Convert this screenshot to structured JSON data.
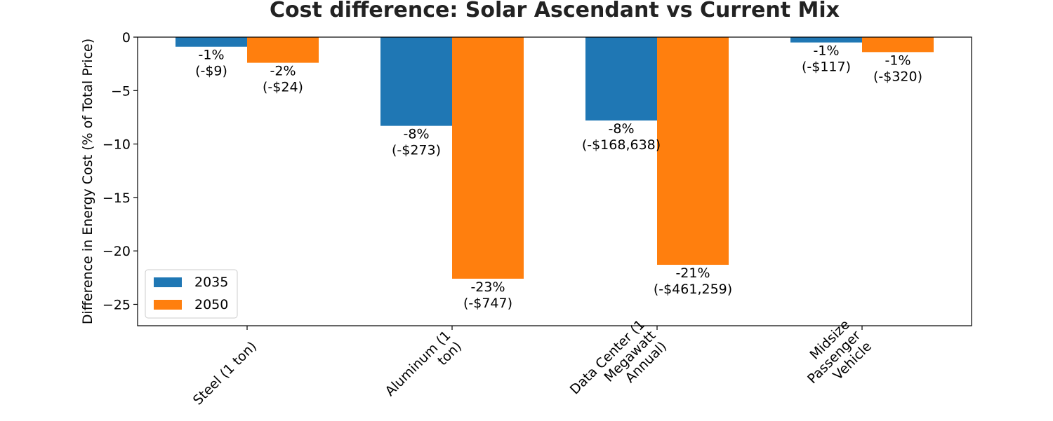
{
  "chart_data": {
    "type": "bar",
    "title": "Cost difference: Solar Ascendant vs Current Mix",
    "xlabel": "",
    "ylabel": "Difference in Energy Cost (% of Total Price)",
    "ylim": [
      -27,
      0
    ],
    "yticks": [
      0,
      -5,
      -10,
      -15,
      -20,
      -25
    ],
    "ytick_labels": [
      "0",
      "−5",
      "−10",
      "−15",
      "−20",
      "−25"
    ],
    "categories": [
      [
        "Steel (1 ton)"
      ],
      [
        "Aluminum (1",
        "ton)"
      ],
      [
        "Data Center (1",
        "Megawatt",
        "Annual)"
      ],
      [
        "Midsize",
        "Passenger",
        "Vehicle"
      ]
    ],
    "series": [
      {
        "name": "2035",
        "color": "#1f77b4",
        "values": [
          -0.9,
          -8.3,
          -7.8,
          -0.5
        ],
        "labels": [
          [
            "-1%",
            "(-$9)"
          ],
          [
            "-8%",
            "(-$273)"
          ],
          [
            "-8%",
            "(-$168,638)"
          ],
          [
            "-1%",
            "(-$117)"
          ]
        ]
      },
      {
        "name": "2050",
        "color": "#ff7f0e",
        "values": [
          -2.4,
          -22.6,
          -21.3,
          -1.4
        ],
        "labels": [
          [
            "-2%",
            "(-$24)"
          ],
          [
            "-23%",
            "(-$747)"
          ],
          [
            "-21%",
            "(-$461,259)"
          ],
          [
            "-1%",
            "(-$320)"
          ]
        ]
      }
    ],
    "legend": "lower-left",
    "grid": false
  }
}
